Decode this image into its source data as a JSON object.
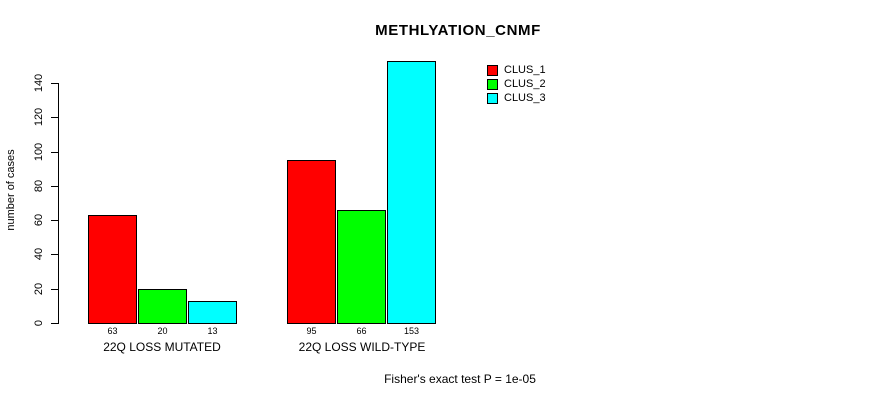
{
  "title": "METHLYATION_CNMF",
  "footer": "Fisher's exact test P = 1e-05",
  "chart_data": {
    "type": "bar",
    "title": "METHLYATION_CNMF",
    "ylabel": "number of cases",
    "xlabel": "",
    "categories": [
      "22Q LOSS MUTATED",
      "22Q LOSS WILD-TYPE"
    ],
    "series": [
      {
        "name": "CLUS_1",
        "color": "#ff0000",
        "values": [
          63,
          95
        ]
      },
      {
        "name": "CLUS_2",
        "color": "#00ff00",
        "values": [
          20,
          66
        ]
      },
      {
        "name": "CLUS_3",
        "color": "#00ffff",
        "values": [
          13,
          153
        ]
      }
    ],
    "yticks": [
      0,
      20,
      40,
      60,
      80,
      100,
      120,
      140
    ],
    "ylim": [
      0,
      140
    ],
    "bar_value_labels": true,
    "grid": false,
    "legend": {
      "position": "top-right",
      "entries": [
        "CLUS_1",
        "CLUS_2",
        "CLUS_3"
      ]
    },
    "annotation": "Fisher's exact test P = 1e-05"
  }
}
